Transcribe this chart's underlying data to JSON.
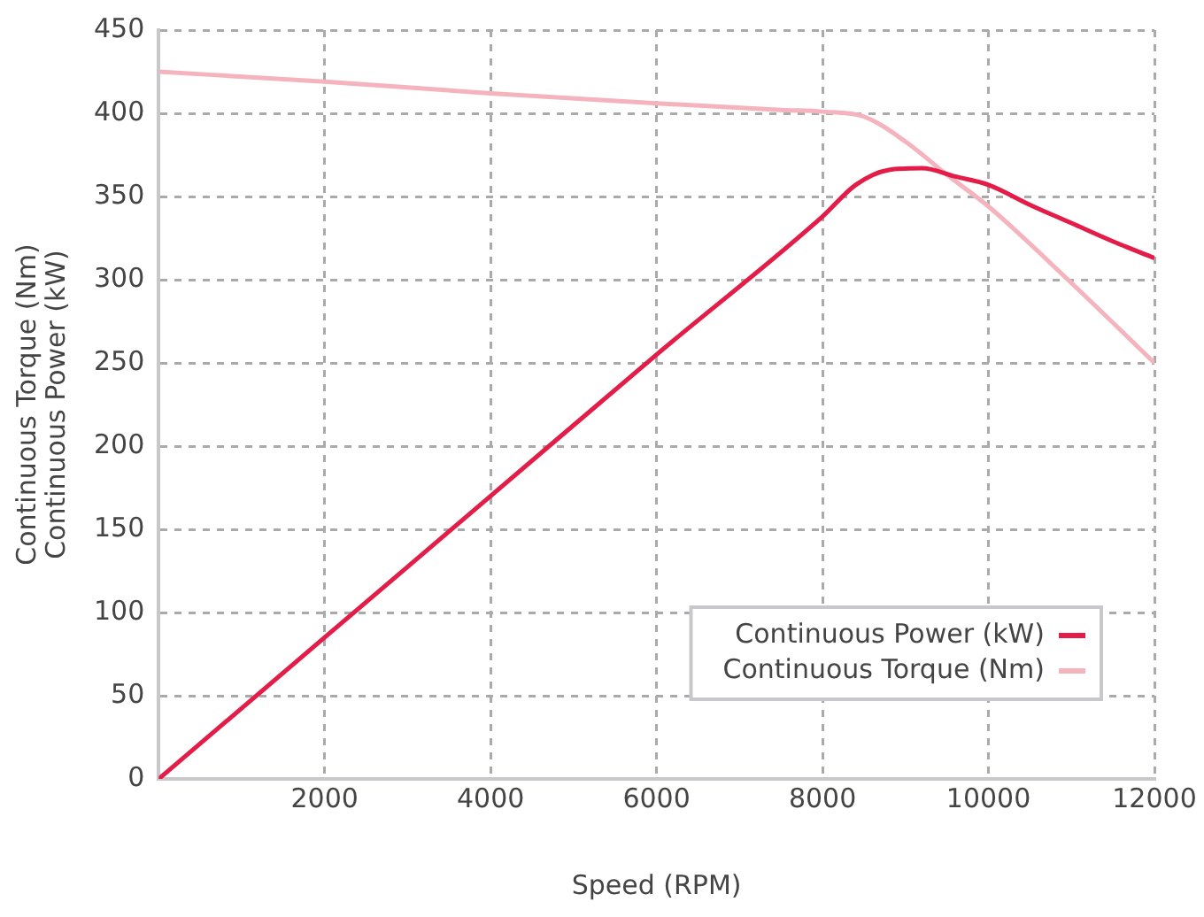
{
  "chart_data": {
    "type": "line",
    "xlabel": "Speed (RPM)",
    "ylabel": "Continuous Torque (Nm)\nContinuous Power (kW)",
    "xlim": [
      0,
      12000
    ],
    "xticks": [
      {
        "value": 0,
        "label": null
      },
      2000,
      4000,
      6000,
      8000,
      10000,
      12000
    ],
    "ylim": [
      0,
      450
    ],
    "yticks": [
      0,
      50,
      100,
      150,
      200,
      250,
      300,
      350,
      400,
      450
    ],
    "grid": true,
    "legend": "bottom right",
    "marker": "none",
    "line_style": "solid",
    "series": [
      {
        "name": "Continuous Power (kW)",
        "color": "#e31c48",
        "x": [
          0,
          2000,
          4000,
          6000,
          8000,
          8400,
          8800,
          9200,
          9600,
          10000,
          10500,
          11000,
          11500,
          12000
        ],
        "values": [
          0,
          85,
          170,
          255,
          338,
          357,
          366,
          367,
          362,
          357,
          345,
          334,
          323,
          313
        ]
      },
      {
        "name": "Continuous Torque (Nm)",
        "color": "#f4b3bd",
        "x": [
          0,
          2000,
          4000,
          6000,
          7500,
          8000,
          8500,
          9000,
          9500,
          10000,
          11000,
          12000
        ],
        "values": [
          425,
          419,
          412,
          406,
          402,
          401,
          398,
          383,
          363,
          344,
          298,
          250
        ]
      }
    ]
  }
}
